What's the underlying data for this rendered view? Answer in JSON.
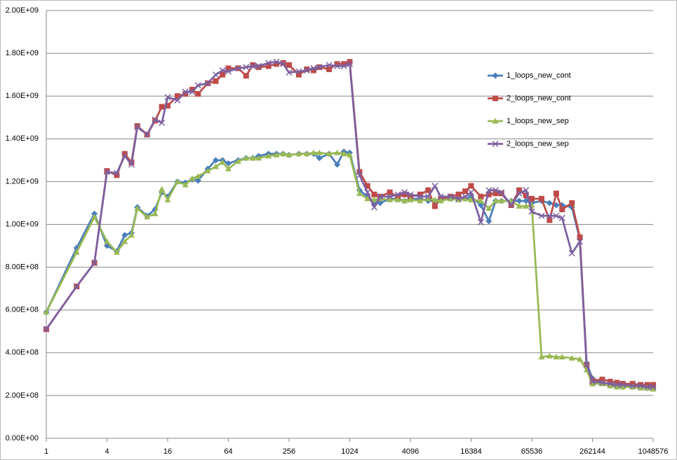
{
  "chart_data": {
    "type": "line",
    "x": [
      1,
      2,
      3,
      4,
      5,
      6,
      7,
      8,
      10,
      12,
      14,
      16,
      20,
      24,
      28,
      32,
      40,
      48,
      56,
      64,
      80,
      96,
      112,
      128,
      160,
      192,
      224,
      256,
      320,
      384,
      448,
      512,
      640,
      768,
      896,
      1024,
      1280,
      1536,
      1792,
      2048,
      2560,
      3072,
      3584,
      4096,
      5120,
      6144,
      7168,
      8192,
      10240,
      12288,
      14336,
      16384,
      20480,
      24576,
      28672,
      32768,
      40960,
      49152,
      57344,
      65536,
      81920,
      98304,
      114688,
      131072,
      163840,
      196608,
      229376,
      262144,
      327680,
      393216,
      458752,
      524288,
      655360,
      786432,
      917504,
      1048576
    ],
    "x_log_base": 2,
    "xlim": [
      1,
      1048576
    ],
    "xticks": [
      1,
      4,
      16,
      64,
      256,
      1024,
      4096,
      16384,
      65536,
      262144,
      1048576
    ],
    "ylim": [
      0,
      2000000000.0
    ],
    "yticks": [
      {
        "value": 0,
        "label": "0.00E+00"
      },
      {
        "value": 200000000.0,
        "label": "2.00E+08"
      },
      {
        "value": 400000000.0,
        "label": "4.00E+08"
      },
      {
        "value": 600000000.0,
        "label": "6.00E+08"
      },
      {
        "value": 800000000.0,
        "label": "8.00E+08"
      },
      {
        "value": 1000000000.0,
        "label": "1.00E+09"
      },
      {
        "value": 1200000000.0,
        "label": "1.20E+09"
      },
      {
        "value": 1400000000.0,
        "label": "1.40E+09"
      },
      {
        "value": 1600000000.0,
        "label": "1.60E+09"
      },
      {
        "value": 1800000000.0,
        "label": "1.80E+09"
      },
      {
        "value": 2000000000.0,
        "label": "2.00E+09"
      }
    ],
    "grid": true,
    "legend": "right",
    "series": [
      {
        "name": "1_loops_new_cont",
        "color": "#4a7ebb",
        "marker": "diamond",
        "values": [
          590000000.0,
          890000000.0,
          1050000000.0,
          900000000.0,
          875000000.0,
          950000000.0,
          960000000.0,
          1080000000.0,
          1040000000.0,
          1070000000.0,
          1150000000.0,
          1130000000.0,
          1200000000.0,
          1195000000.0,
          1210000000.0,
          1205000000.0,
          1260000000.0,
          1300000000.0,
          1300000000.0,
          1285000000.0,
          1300000000.0,
          1310000000.0,
          1310000000.0,
          1320000000.0,
          1330000000.0,
          1330000000.0,
          1330000000.0,
          1325000000.0,
          1330000000.0,
          1330000000.0,
          1330000000.0,
          1310000000.0,
          1330000000.0,
          1280000000.0,
          1340000000.0,
          1335000000.0,
          1160000000.0,
          1130000000.0,
          1100000000.0,
          1100000000.0,
          1120000000.0,
          1120000000.0,
          1110000000.0,
          1120000000.0,
          1120000000.0,
          1110000000.0,
          1110000000.0,
          1120000000.0,
          1120000000.0,
          1120000000.0,
          1120000000.0,
          1130000000.0,
          1090000000.0,
          1015000000.0,
          1110000000.0,
          1110000000.0,
          1110000000.0,
          1110000000.0,
          1110000000.0,
          1100000000.0,
          1110000000.0,
          1100000000.0,
          1090000000.0,
          1090000000.0,
          1080000000.0,
          930000000.0,
          350000000.0,
          280000000.0,
          260000000.0,
          250000000.0,
          245000000.0,
          240000000.0,
          240000000.0,
          240000000.0,
          235000000.0,
          235000000.0
        ]
      },
      {
        "name": "2_loops_new_cont",
        "color": "#be4b48",
        "marker": "square",
        "values": [
          510000000.0,
          710000000.0,
          820000000.0,
          1250000000.0,
          1230000000.0,
          1330000000.0,
          1290000000.0,
          1460000000.0,
          1420000000.0,
          1485000000.0,
          1550000000.0,
          1555000000.0,
          1600000000.0,
          1610000000.0,
          1630000000.0,
          1610000000.0,
          1660000000.0,
          1670000000.0,
          1700000000.0,
          1730000000.0,
          1730000000.0,
          1695000000.0,
          1745000000.0,
          1735000000.0,
          1740000000.0,
          1750000000.0,
          1755000000.0,
          1745000000.0,
          1700000000.0,
          1725000000.0,
          1720000000.0,
          1735000000.0,
          1725000000.0,
          1750000000.0,
          1750000000.0,
          1760000000.0,
          1245000000.0,
          1180000000.0,
          1140000000.0,
          1130000000.0,
          1150000000.0,
          1130000000.0,
          1140000000.0,
          1130000000.0,
          1140000000.0,
          1160000000.0,
          1085000000.0,
          1120000000.0,
          1130000000.0,
          1140000000.0,
          1155000000.0,
          1180000000.0,
          1130000000.0,
          1140000000.0,
          1145000000.0,
          1145000000.0,
          1090000000.0,
          1160000000.0,
          1135000000.0,
          1120000000.0,
          1120000000.0,
          1020000000.0,
          1145000000.0,
          1070000000.0,
          1100000000.0,
          940000000.0,
          340000000.0,
          270000000.0,
          275000000.0,
          265000000.0,
          260000000.0,
          255000000.0,
          255000000.0,
          250000000.0,
          250000000.0,
          250000000.0
        ]
      },
      {
        "name": "1_loops_new_sep",
        "color": "#98b954",
        "marker": "triangle",
        "values": [
          590000000.0,
          870000000.0,
          1035000000.0,
          920000000.0,
          870000000.0,
          920000000.0,
          950000000.0,
          1075000000.0,
          1035000000.0,
          1050000000.0,
          1165000000.0,
          1115000000.0,
          1200000000.0,
          1185000000.0,
          1215000000.0,
          1225000000.0,
          1250000000.0,
          1270000000.0,
          1290000000.0,
          1260000000.0,
          1295000000.0,
          1310000000.0,
          1310000000.0,
          1310000000.0,
          1320000000.0,
          1325000000.0,
          1330000000.0,
          1325000000.0,
          1330000000.0,
          1330000000.0,
          1335000000.0,
          1335000000.0,
          1330000000.0,
          1335000000.0,
          1330000000.0,
          1325000000.0,
          1145000000.0,
          1120000000.0,
          1115000000.0,
          1120000000.0,
          1115000000.0,
          1115000000.0,
          1110000000.0,
          1115000000.0,
          1110000000.0,
          1120000000.0,
          1115000000.0,
          1110000000.0,
          1120000000.0,
          1115000000.0,
          1120000000.0,
          1115000000.0,
          1110000000.0,
          1075000000.0,
          1110000000.0,
          1110000000.0,
          1110000000.0,
          1085000000.0,
          1085000000.0,
          1090000000.0,
          380000000.0,
          385000000.0,
          380000000.0,
          380000000.0,
          375000000.0,
          370000000.0,
          320000000.0,
          255000000.0,
          255000000.0,
          245000000.0,
          240000000.0,
          240000000.0,
          240000000.0,
          235000000.0,
          235000000.0,
          230000000.0
        ]
      },
      {
        "name": "2_loops_new_sep",
        "color": "#7d60a0",
        "marker": "x",
        "values": [
          510000000.0,
          710000000.0,
          820000000.0,
          1245000000.0,
          1240000000.0,
          1320000000.0,
          1280000000.0,
          1455000000.0,
          1420000000.0,
          1490000000.0,
          1475000000.0,
          1595000000.0,
          1580000000.0,
          1620000000.0,
          1620000000.0,
          1650000000.0,
          1660000000.0,
          1700000000.0,
          1720000000.0,
          1715000000.0,
          1730000000.0,
          1735000000.0,
          1740000000.0,
          1740000000.0,
          1755000000.0,
          1760000000.0,
          1750000000.0,
          1710000000.0,
          1715000000.0,
          1720000000.0,
          1730000000.0,
          1735000000.0,
          1745000000.0,
          1740000000.0,
          1740000000.0,
          1750000000.0,
          1230000000.0,
          1150000000.0,
          1080000000.0,
          1130000000.0,
          1130000000.0,
          1140000000.0,
          1150000000.0,
          1140000000.0,
          1130000000.0,
          1130000000.0,
          1180000000.0,
          1130000000.0,
          1130000000.0,
          1120000000.0,
          1130000000.0,
          1150000000.0,
          1010000000.0,
          1160000000.0,
          1160000000.0,
          1150000000.0,
          1090000000.0,
          1145000000.0,
          1160000000.0,
          1060000000.0,
          1040000000.0,
          1040000000.0,
          1040000000.0,
          1030000000.0,
          865000000.0,
          920000000.0,
          345000000.0,
          265000000.0,
          260000000.0,
          255000000.0,
          250000000.0,
          250000000.0,
          245000000.0,
          245000000.0,
          240000000.0,
          240000000.0
        ]
      }
    ]
  }
}
